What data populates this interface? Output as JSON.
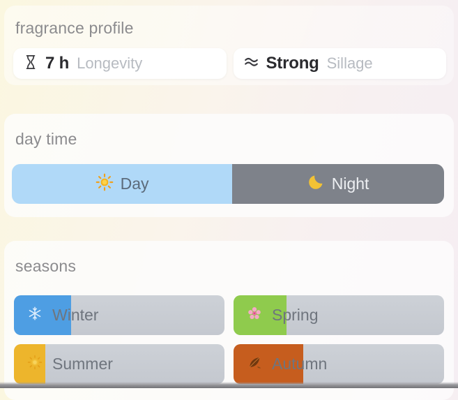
{
  "fragrance_profile": {
    "title": "fragrance profile",
    "stats": [
      {
        "icon": "hourglass-icon",
        "value": "7 h",
        "label": "Longevity"
      },
      {
        "icon": "waves-icon",
        "value": "Strong",
        "label": "Sillage"
      }
    ]
  },
  "day_time": {
    "title": "day time",
    "day": {
      "icon": "sun-icon",
      "label": "Day",
      "share_percent": 51,
      "fill_color": "#B0D9F8"
    },
    "night": {
      "icon": "moon-icon",
      "label": "Night",
      "share_percent": 49,
      "fill_color": "#7E828A"
    }
  },
  "seasons": {
    "title": "seasons",
    "items": [
      {
        "icon": "snowflake-icon",
        "label": "Winter",
        "fill_percent": 27,
        "fill_color": "#4E9EE3"
      },
      {
        "icon": "blossom-icon",
        "label": "Spring",
        "fill_percent": 25,
        "fill_color": "#8FCB4D"
      },
      {
        "icon": "sun-icon",
        "label": "Summer",
        "fill_percent": 15,
        "fill_color": "#EDB52C"
      },
      {
        "icon": "leaf-icon",
        "label": "Autumn",
        "fill_percent": 33,
        "fill_color": "#C65D1E"
      }
    ],
    "track_color": "#C9CDD4"
  }
}
